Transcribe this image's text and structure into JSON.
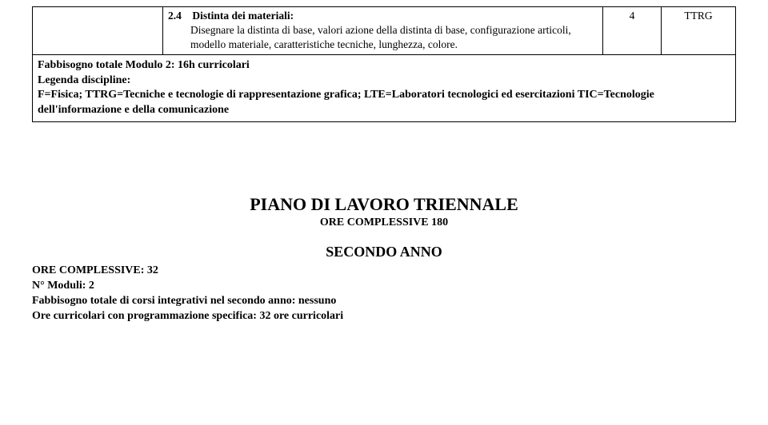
{
  "table": {
    "row": {
      "num": "2.4",
      "title": "Distinta dei materiali:",
      "desc": "Disegnare la distinta di base, valori azione della distinta di base, configurazione articoli, modello materiale, caratteristiche tecniche, lunghezza, colore.",
      "hours": "4",
      "disc": "TTRG"
    },
    "footer": {
      "line1": "Fabbisogno totale Modulo 2: 16h curricolari",
      "line2": "Legenda discipline:",
      "line3": "F=Fisica; TTRG=Tecniche e tecnologie di rappresentazione grafica; LTE=Laboratori tecnologici ed esercitazioni TIC=Tecnologie dell'informazione e della comunicazione"
    }
  },
  "plan": {
    "title": "PIANO DI LAVORO TRIENNALE",
    "subtitle": "ORE COMPLESSIVE 180",
    "year": "SECONDO ANNO"
  },
  "details": {
    "l1": "ORE COMPLESSIVE: 32",
    "l2": "N° Moduli: 2",
    "l3": "Fabbisogno totale di corsi integrativi nel secondo anno: nessuno",
    "l4": "Ore curricolari con programmazione specifica: 32 ore curricolari"
  },
  "colors": {
    "text": "#000000",
    "bg": "#ffffff",
    "border": "#000000"
  }
}
